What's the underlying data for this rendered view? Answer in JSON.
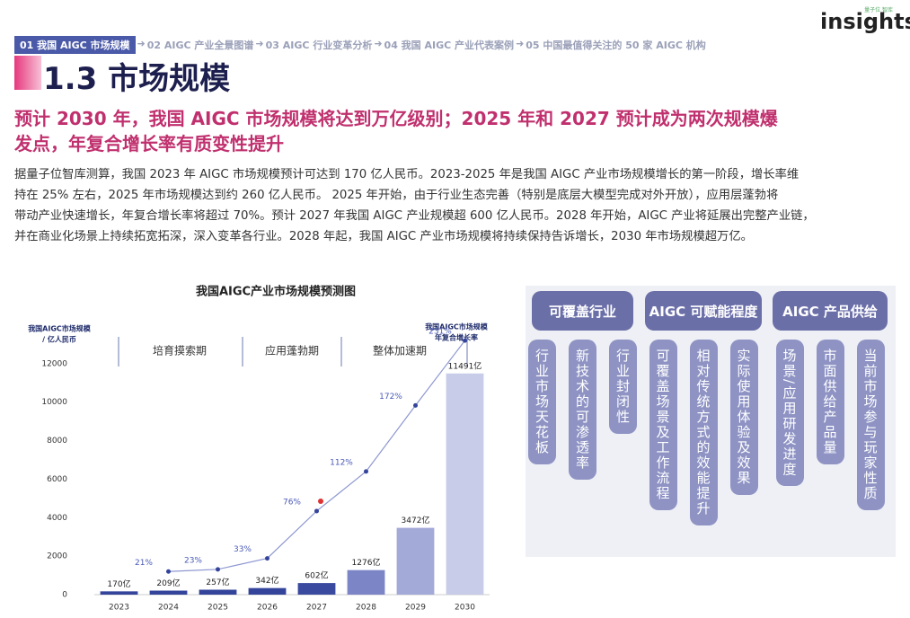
{
  "logo": {
    "small": "量子位 智库",
    "name": "insights"
  },
  "nav": [
    "01 我国 AIGC 市场规模",
    "02 AIGC 产业全景图谱",
    "03 AIGC 行业变革分析",
    "04 我国 AIGC 产业代表案例",
    "05 中国最值得关注的 50 家 AIGC 机构"
  ],
  "section_title": "1.3 市场规模",
  "headline": [
    "预计 2030 年，我国 AIGC 市场规模将达到万亿级别；2025 年和 2027 预计成为两次规模爆",
    "发点，年复合增长率有质变性提升"
  ],
  "body": [
    "据量子位智库测算，我国 2023 年 AIGC 市场规模预计可达到 170 亿人民币。2023-2025 年是我国 AIGC 产业市场规模增长的第一阶段，增长率维",
    "持在 25% 左右，2025 年市场规模达到约 260 亿人民币。 2025 年开始，由于行业生态完善（特别是底层大模型完成对外开放），应用层蓬勃将",
    "带动产业快速增长，年复合增长率将超过 70%。预计 2027 年我国 AIGC 产业规模超 600 亿人民币。2028 年开始，AIGC 产业将延展出完整产业链，",
    "并在商业化场景上持续拓宽拓深，深入变革各行业。2028 年起，我国 AIGC 产业市场规模将持续保持告诉增长，2030 年市场规模超万亿。"
  ],
  "chart_data": {
    "type": "bar",
    "title": "我国AIGC产业市场规模预测图",
    "ylabel": [
      "我国AIGC市场规模",
      "/ 亿人民币"
    ],
    "y2label": [
      "我国AIGC市场规模",
      "年复合增长率"
    ],
    "phases": [
      "培育摸索期",
      "应用蓬勃期",
      "整体加速期"
    ],
    "categories": [
      "2023",
      "2024",
      "2025",
      "2026",
      "2027",
      "2028",
      "2029",
      "2030"
    ],
    "series": [
      {
        "type": "bar",
        "colors": [
          "#34449a",
          "#34449a",
          "#34449a",
          "#34449a",
          "#3a4a9e",
          "#7c86c6",
          "#a3aad8",
          "#c8cce8"
        ],
        "values": [
          170,
          209,
          257,
          342,
          602,
          1276,
          3472,
          11491
        ],
        "value_labels": [
          "170亿",
          "209亿",
          "257亿",
          "342亿",
          "602亿",
          "1276亿",
          "3472亿",
          "11491亿"
        ]
      },
      {
        "type": "line",
        "axis": "y2",
        "color": "#8d97d0",
        "values": [
          null,
          21,
          23,
          33,
          76,
          112,
          172,
          231
        ],
        "value_labels": [
          null,
          "21%",
          "23%",
          "33%",
          "76%",
          "112%",
          "172%",
          "231%"
        ]
      }
    ],
    "ylim": [
      0,
      14000
    ],
    "yticks": [
      0,
      2000,
      4000,
      6000,
      8000,
      10000,
      12000
    ],
    "y2lim": [
      0,
      245
    ],
    "grid": false
  },
  "diagram": {
    "columns": [
      {
        "title": "可覆盖行业",
        "items": [
          "行业市场天花板",
          "新技术的可渗透率",
          "行业封闭性"
        ]
      },
      {
        "title": "AIGC 可赋能程度",
        "items": [
          "可覆盖场景及工作流程",
          "相对传统方式的效能提升",
          "实际使用体验及效果"
        ]
      },
      {
        "title": "AIGC 产品供给",
        "items": [
          "场景/应用研发进度",
          "市面供给产品量",
          "当前市场参与玩家性质"
        ]
      }
    ]
  }
}
